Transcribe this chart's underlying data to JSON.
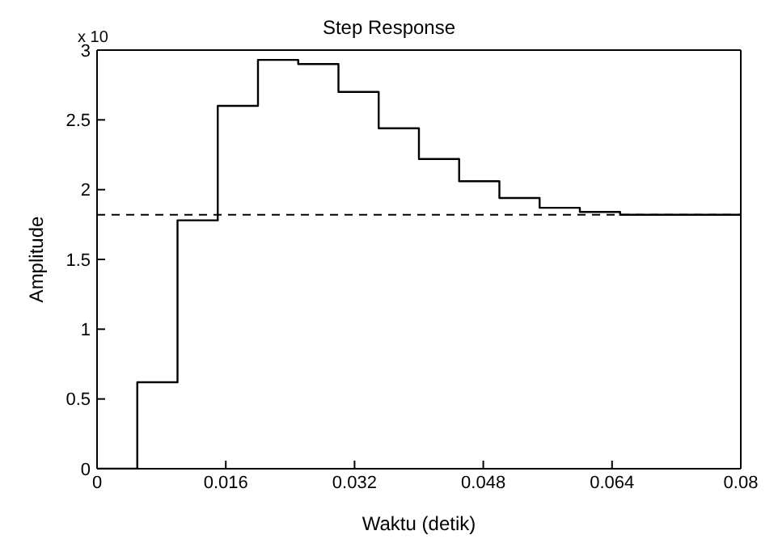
{
  "chart_data": {
    "type": "step",
    "title": "Step Response",
    "xlabel": "Waktu (detik)",
    "ylabel": "Amplitude",
    "annotations": [
      "x 10"
    ],
    "x": [
      0,
      0.005,
      0.01,
      0.015,
      0.02,
      0.025,
      0.03,
      0.035,
      0.04,
      0.045,
      0.05,
      0.055,
      0.06,
      0.065,
      0.08
    ],
    "series": [
      {
        "color": "#000000",
        "values": [
          0,
          0.62,
          1.78,
          2.6,
          2.93,
          2.9,
          2.7,
          2.44,
          2.22,
          2.06,
          1.94,
          1.87,
          1.84,
          1.82,
          1.82
        ]
      }
    ],
    "ref_lines": [
      {
        "axis": "y",
        "value": 1.82,
        "color": "#000000",
        "line_style": "dashed"
      }
    ],
    "xlim": [
      0,
      0.08
    ],
    "xticks": [
      0,
      0.016,
      0.032,
      0.048,
      0.064,
      0.08
    ],
    "ylim": [
      0,
      3
    ],
    "yticks": [
      0,
      0.5,
      1,
      1.5,
      2,
      2.5,
      3
    ],
    "grid": false,
    "legend": false,
    "marker": "none",
    "line_style": "solid"
  }
}
